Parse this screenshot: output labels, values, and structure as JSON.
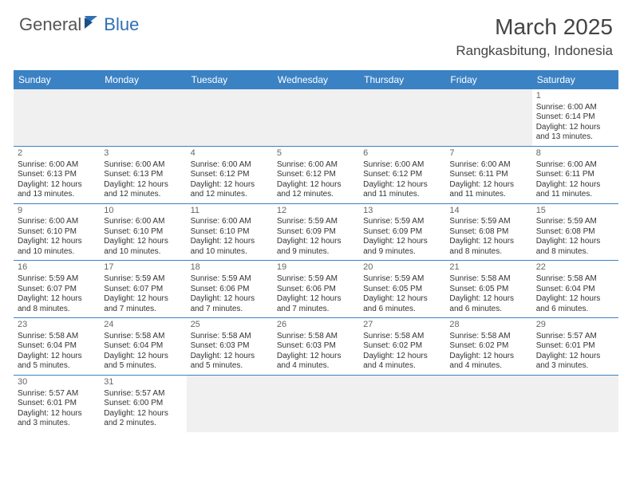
{
  "brand": {
    "part1": "General",
    "part2": "Blue"
  },
  "title": "March 2025",
  "location": "Rangkasbitung, Indonesia",
  "colors": {
    "header_bg": "#3b82c4",
    "header_text": "#ffffff",
    "brand_gray": "#555555",
    "brand_blue": "#2f6fb5",
    "cell_border": "#3b82c4",
    "empty_bg": "#f0f0f0",
    "text": "#333333"
  },
  "weekdays": [
    "Sunday",
    "Monday",
    "Tuesday",
    "Wednesday",
    "Thursday",
    "Friday",
    "Saturday"
  ],
  "weeks": [
    [
      null,
      null,
      null,
      null,
      null,
      null,
      {
        "d": "1",
        "sr": "Sunrise: 6:00 AM",
        "ss": "Sunset: 6:14 PM",
        "dl1": "Daylight: 12 hours",
        "dl2": "and 13 minutes."
      }
    ],
    [
      {
        "d": "2",
        "sr": "Sunrise: 6:00 AM",
        "ss": "Sunset: 6:13 PM",
        "dl1": "Daylight: 12 hours",
        "dl2": "and 13 minutes."
      },
      {
        "d": "3",
        "sr": "Sunrise: 6:00 AM",
        "ss": "Sunset: 6:13 PM",
        "dl1": "Daylight: 12 hours",
        "dl2": "and 12 minutes."
      },
      {
        "d": "4",
        "sr": "Sunrise: 6:00 AM",
        "ss": "Sunset: 6:12 PM",
        "dl1": "Daylight: 12 hours",
        "dl2": "and 12 minutes."
      },
      {
        "d": "5",
        "sr": "Sunrise: 6:00 AM",
        "ss": "Sunset: 6:12 PM",
        "dl1": "Daylight: 12 hours",
        "dl2": "and 12 minutes."
      },
      {
        "d": "6",
        "sr": "Sunrise: 6:00 AM",
        "ss": "Sunset: 6:12 PM",
        "dl1": "Daylight: 12 hours",
        "dl2": "and 11 minutes."
      },
      {
        "d": "7",
        "sr": "Sunrise: 6:00 AM",
        "ss": "Sunset: 6:11 PM",
        "dl1": "Daylight: 12 hours",
        "dl2": "and 11 minutes."
      },
      {
        "d": "8",
        "sr": "Sunrise: 6:00 AM",
        "ss": "Sunset: 6:11 PM",
        "dl1": "Daylight: 12 hours",
        "dl2": "and 11 minutes."
      }
    ],
    [
      {
        "d": "9",
        "sr": "Sunrise: 6:00 AM",
        "ss": "Sunset: 6:10 PM",
        "dl1": "Daylight: 12 hours",
        "dl2": "and 10 minutes."
      },
      {
        "d": "10",
        "sr": "Sunrise: 6:00 AM",
        "ss": "Sunset: 6:10 PM",
        "dl1": "Daylight: 12 hours",
        "dl2": "and 10 minutes."
      },
      {
        "d": "11",
        "sr": "Sunrise: 6:00 AM",
        "ss": "Sunset: 6:10 PM",
        "dl1": "Daylight: 12 hours",
        "dl2": "and 10 minutes."
      },
      {
        "d": "12",
        "sr": "Sunrise: 5:59 AM",
        "ss": "Sunset: 6:09 PM",
        "dl1": "Daylight: 12 hours",
        "dl2": "and 9 minutes."
      },
      {
        "d": "13",
        "sr": "Sunrise: 5:59 AM",
        "ss": "Sunset: 6:09 PM",
        "dl1": "Daylight: 12 hours",
        "dl2": "and 9 minutes."
      },
      {
        "d": "14",
        "sr": "Sunrise: 5:59 AM",
        "ss": "Sunset: 6:08 PM",
        "dl1": "Daylight: 12 hours",
        "dl2": "and 8 minutes."
      },
      {
        "d": "15",
        "sr": "Sunrise: 5:59 AM",
        "ss": "Sunset: 6:08 PM",
        "dl1": "Daylight: 12 hours",
        "dl2": "and 8 minutes."
      }
    ],
    [
      {
        "d": "16",
        "sr": "Sunrise: 5:59 AM",
        "ss": "Sunset: 6:07 PM",
        "dl1": "Daylight: 12 hours",
        "dl2": "and 8 minutes."
      },
      {
        "d": "17",
        "sr": "Sunrise: 5:59 AM",
        "ss": "Sunset: 6:07 PM",
        "dl1": "Daylight: 12 hours",
        "dl2": "and 7 minutes."
      },
      {
        "d": "18",
        "sr": "Sunrise: 5:59 AM",
        "ss": "Sunset: 6:06 PM",
        "dl1": "Daylight: 12 hours",
        "dl2": "and 7 minutes."
      },
      {
        "d": "19",
        "sr": "Sunrise: 5:59 AM",
        "ss": "Sunset: 6:06 PM",
        "dl1": "Daylight: 12 hours",
        "dl2": "and 7 minutes."
      },
      {
        "d": "20",
        "sr": "Sunrise: 5:59 AM",
        "ss": "Sunset: 6:05 PM",
        "dl1": "Daylight: 12 hours",
        "dl2": "and 6 minutes."
      },
      {
        "d": "21",
        "sr": "Sunrise: 5:58 AM",
        "ss": "Sunset: 6:05 PM",
        "dl1": "Daylight: 12 hours",
        "dl2": "and 6 minutes."
      },
      {
        "d": "22",
        "sr": "Sunrise: 5:58 AM",
        "ss": "Sunset: 6:04 PM",
        "dl1": "Daylight: 12 hours",
        "dl2": "and 6 minutes."
      }
    ],
    [
      {
        "d": "23",
        "sr": "Sunrise: 5:58 AM",
        "ss": "Sunset: 6:04 PM",
        "dl1": "Daylight: 12 hours",
        "dl2": "and 5 minutes."
      },
      {
        "d": "24",
        "sr": "Sunrise: 5:58 AM",
        "ss": "Sunset: 6:04 PM",
        "dl1": "Daylight: 12 hours",
        "dl2": "and 5 minutes."
      },
      {
        "d": "25",
        "sr": "Sunrise: 5:58 AM",
        "ss": "Sunset: 6:03 PM",
        "dl1": "Daylight: 12 hours",
        "dl2": "and 5 minutes."
      },
      {
        "d": "26",
        "sr": "Sunrise: 5:58 AM",
        "ss": "Sunset: 6:03 PM",
        "dl1": "Daylight: 12 hours",
        "dl2": "and 4 minutes."
      },
      {
        "d": "27",
        "sr": "Sunrise: 5:58 AM",
        "ss": "Sunset: 6:02 PM",
        "dl1": "Daylight: 12 hours",
        "dl2": "and 4 minutes."
      },
      {
        "d": "28",
        "sr": "Sunrise: 5:58 AM",
        "ss": "Sunset: 6:02 PM",
        "dl1": "Daylight: 12 hours",
        "dl2": "and 4 minutes."
      },
      {
        "d": "29",
        "sr": "Sunrise: 5:57 AM",
        "ss": "Sunset: 6:01 PM",
        "dl1": "Daylight: 12 hours",
        "dl2": "and 3 minutes."
      }
    ],
    [
      {
        "d": "30",
        "sr": "Sunrise: 5:57 AM",
        "ss": "Sunset: 6:01 PM",
        "dl1": "Daylight: 12 hours",
        "dl2": "and 3 minutes."
      },
      {
        "d": "31",
        "sr": "Sunrise: 5:57 AM",
        "ss": "Sunset: 6:00 PM",
        "dl1": "Daylight: 12 hours",
        "dl2": "and 2 minutes."
      },
      null,
      null,
      null,
      null,
      null
    ]
  ]
}
